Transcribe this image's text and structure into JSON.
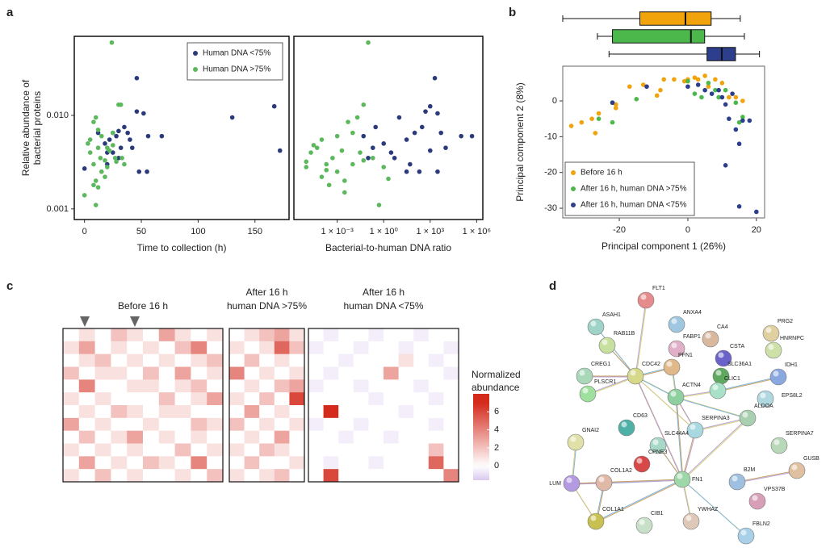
{
  "panel_labels": [
    "a",
    "b",
    "c",
    "d"
  ],
  "chart_data": [
    {
      "type": "scatter",
      "ylabel": [
        "Relative abundance of",
        "bacterial proteins"
      ],
      "xlabel": "Time to collection (h)",
      "xlim": [
        -9,
        180
      ],
      "xticks": [
        0,
        50,
        100,
        150
      ],
      "ylog": true,
      "ylim": [
        0.00077,
        0.07
      ],
      "yticks": [
        0.001,
        {
          "value": 0.01,
          "label": "0.010"
        }
      ],
      "legend": "upper right",
      "series": [
        {
          "name": "Human DNA <75%",
          "color": "#2b3a7a",
          "x": [
            0,
            12,
            18,
            20,
            22,
            25,
            25,
            28,
            30,
            32,
            35,
            38,
            40,
            42,
            46,
            46,
            48,
            52,
            55,
            56,
            68,
            130,
            167,
            172,
            30,
            20
          ],
          "values": [
            0.0027,
            0.0065,
            0.005,
            0.004,
            0.0055,
            0.0065,
            0.004,
            0.006,
            0.0068,
            0.0045,
            0.0075,
            0.0065,
            0.0055,
            0.0045,
            0.025,
            0.011,
            0.0025,
            0.0105,
            0.0025,
            0.006,
            0.006,
            0.0095,
            0.0125,
            0.0042,
            0.0035,
            0.003
          ]
        },
        {
          "name": "Human DNA >75%",
          "color": "#5cb85c",
          "x": [
            0,
            5,
            5,
            8,
            8,
            10,
            10,
            10,
            12,
            12,
            14,
            15,
            15,
            18,
            18,
            20,
            22,
            24,
            25,
            27,
            28,
            30,
            32,
            35,
            8,
            3,
            12,
            20,
            25,
            33
          ],
          "values": [
            0.0014,
            0.004,
            0.0055,
            0.003,
            0.0085,
            0.0095,
            0.0011,
            0.002,
            0.007,
            0.0045,
            0.0035,
            0.006,
            0.0025,
            0.0033,
            0.0022,
            0.0045,
            0.0042,
            0.06,
            0.0065,
            0.0035,
            0.0032,
            0.013,
            0.013,
            0.003,
            0.0018,
            0.005,
            0.0017,
            0.0028,
            0.0048,
            0.0035
          ]
        }
      ]
    },
    {
      "type": "scatter",
      "xlabel": "Bacterial-to-human DNA ratio",
      "xlog": true,
      "xlim": [
        1.6e-06,
        2500000.0
      ],
      "xticks": [
        {
          "value": 0.001,
          "label": "1 × 10⁻³"
        },
        {
          "value": 1,
          "label": "1 × 10⁰"
        },
        {
          "value": 1000,
          "label": "1 × 10³"
        },
        {
          "value": 1000000,
          "label": "1 × 10⁶"
        }
      ],
      "ylog": true,
      "ylim": [
        0.00077,
        0.07
      ],
      "series": [
        {
          "color": "#2b3a7a",
          "x": [
            0.05,
            0.2,
            0.3,
            1,
            3,
            5,
            10,
            30,
            50,
            100,
            200,
            300,
            500,
            1000,
            2000,
            3000,
            5000,
            10000,
            100000,
            500000,
            0.1,
            30,
            3000,
            1000
          ],
          "values": [
            0.006,
            0.0045,
            0.0075,
            0.005,
            0.004,
            0.0035,
            0.0095,
            0.0055,
            0.003,
            0.0065,
            0.0025,
            0.0075,
            0.011,
            0.0125,
            0.025,
            0.0105,
            0.0065,
            0.0045,
            0.006,
            0.006,
            0.0035,
            0.0025,
            0.0025,
            0.0042
          ]
        },
        {
          "color": "#5cb85c",
          "x": [
            1e-05,
            1e-05,
            2e-05,
            5e-05,
            0.0001,
            0.0001,
            0.0002,
            0.0003,
            0.0005,
            0.001,
            0.001,
            0.002,
            0.003,
            0.005,
            0.01,
            0.01,
            0.02,
            0.03,
            0.05,
            0.1,
            0.2,
            0.5,
            1,
            2,
            3e-05,
            0.003,
            0.05,
            0.0002
          ],
          "values": [
            0.0028,
            0.0032,
            0.004,
            0.0045,
            0.0022,
            0.0055,
            0.003,
            0.0018,
            0.0035,
            0.0025,
            0.006,
            0.0042,
            0.0015,
            0.0085,
            0.0065,
            0.003,
            0.0095,
            0.004,
            0.013,
            0.06,
            0.0035,
            0.0011,
            0.0028,
            0.0021,
            0.0048,
            0.002,
            0.0033,
            0.0026
          ]
        }
      ]
    },
    {
      "type": "box",
      "xlim": [
        -36.5,
        22.4
      ],
      "series": [
        {
          "color": "#f0a30a",
          "min": -36.5,
          "q1": -14,
          "median": -0.7,
          "q3": 6.8,
          "max": 15.3
        },
        {
          "color": "#4cb84c",
          "min": -26.4,
          "q1": -22,
          "median": 0.9,
          "q3": 4.9,
          "max": 16.5
        },
        {
          "color": "#2d3f8c",
          "min": -23,
          "q1": 5.6,
          "median": 9.9,
          "q3": 13.9,
          "max": 20.9
        }
      ]
    },
    {
      "type": "scatter",
      "xlabel": "Principal component 1 (26%)",
      "ylabel": [
        "Principal component 2 (8%)"
      ],
      "xlim": [
        -36.5,
        22.4
      ],
      "xticks": [
        -20,
        0,
        20
      ],
      "ylim": [
        -32.7,
        9.7
      ],
      "yticks": [
        -30,
        -20,
        -10,
        0
      ],
      "legend": "lower left",
      "series": [
        {
          "name": "Before 16 h",
          "color": "#f0a30a",
          "x": [
            -34,
            -31,
            -28,
            -27,
            -26,
            -21,
            -17,
            -13,
            -9,
            -8,
            -7,
            -4,
            -1,
            0,
            2,
            3,
            5,
            6,
            8,
            10,
            12,
            14,
            16,
            -21
          ],
          "values": [
            -7,
            -6,
            -5,
            -9,
            -3.5,
            -1,
            4,
            4.5,
            1.5,
            3,
            6,
            6,
            5.5,
            6,
            6.5,
            6,
            7,
            4,
            6,
            5,
            1,
            1,
            0,
            -2
          ]
        },
        {
          "name": "After 16 h, human DNA >75%",
          "color": "#4cb84c",
          "x": [
            -26,
            -22,
            -15,
            0,
            2,
            4,
            6,
            8,
            9,
            11,
            14,
            15,
            16,
            -22
          ],
          "values": [
            -5,
            -6,
            0.5,
            5.5,
            2,
            1,
            5,
            3,
            1,
            3,
            -0.5,
            -6,
            -4.5,
            -0.5
          ]
        },
        {
          "name": "After 16 h, human DNA <75%",
          "color": "#2d3f8c",
          "x": [
            -22,
            -12,
            0,
            3,
            5,
            7,
            9,
            10,
            11,
            11,
            12,
            14,
            15,
            16,
            18,
            15,
            20,
            13
          ],
          "values": [
            -0.5,
            4,
            4,
            4.5,
            3,
            2,
            3,
            1,
            -1,
            -18,
            -5,
            -8,
            -12,
            -5.5,
            -5.5,
            -29.5,
            -31,
            2
          ]
        }
      ]
    },
    {
      "type": "heatmap",
      "colorbar_label": [
        "Normalized",
        "abundance"
      ],
      "zlim": [
        -1.6,
        8
      ],
      "zticks": [
        0,
        2,
        4,
        6
      ],
      "blocks": [
        {
          "title": [
            "Before 16 h"
          ],
          "values": [
            [
              0,
              1,
              0,
              2,
              1,
              0,
              3,
              1,
              0,
              1
            ],
            [
              1,
              3,
              0,
              1,
              0,
              1,
              0,
              2,
              4,
              0
            ],
            [
              0,
              1,
              2,
              0,
              1,
              0,
              1,
              0,
              1,
              2
            ],
            [
              2,
              0,
              1,
              1,
              0,
              2,
              0,
              3,
              0,
              1
            ],
            [
              0,
              4,
              0,
              0,
              1,
              1,
              0,
              1,
              2,
              0
            ],
            [
              1,
              0,
              1,
              0,
              0,
              0,
              2,
              0,
              1,
              3
            ],
            [
              0,
              1,
              0,
              2,
              1,
              0,
              1,
              1,
              0,
              0
            ],
            [
              3,
              0,
              1,
              0,
              0,
              1,
              0,
              0,
              2,
              1
            ],
            [
              0,
              2,
              0,
              1,
              3,
              0,
              1,
              0,
              1,
              0
            ],
            [
              1,
              0,
              1,
              0,
              1,
              0,
              0,
              2,
              0,
              1
            ],
            [
              0,
              3,
              0,
              1,
              0,
              2,
              1,
              0,
              4,
              0
            ],
            [
              1,
              0,
              2,
              0,
              1,
              0,
              0,
              1,
              0,
              2
            ]
          ]
        },
        {
          "title": [
            "After 16 h",
            "human DNA >75%"
          ],
          "values": [
            [
              0,
              1,
              2,
              3,
              1
            ],
            [
              1,
              0,
              1,
              5,
              2
            ],
            [
              0,
              2,
              0,
              1,
              0
            ],
            [
              4,
              0,
              1,
              0,
              1
            ],
            [
              0,
              1,
              0,
              2,
              3
            ],
            [
              1,
              0,
              2,
              0,
              6
            ],
            [
              0,
              3,
              0,
              1,
              0
            ],
            [
              2,
              0,
              1,
              0,
              1
            ],
            [
              0,
              1,
              0,
              3,
              0
            ],
            [
              1,
              0,
              2,
              1,
              0
            ],
            [
              0,
              2,
              0,
              0,
              1
            ],
            [
              1,
              0,
              1,
              2,
              0
            ]
          ]
        },
        {
          "title": [
            "After 16 h",
            "human DNA <75%"
          ],
          "values": [
            [
              0,
              -0.5,
              0,
              0,
              -0.5,
              0,
              0,
              -0.5,
              0,
              0
            ],
            [
              -0.5,
              0,
              0,
              -0.5,
              0,
              0,
              -0.5,
              0,
              0,
              -0.5
            ],
            [
              0,
              0,
              -0.5,
              0,
              0,
              0,
              1,
              0,
              -0.5,
              0
            ],
            [
              0,
              -0.5,
              0,
              0,
              0,
              3,
              0,
              0,
              0,
              -0.5
            ],
            [
              -0.5,
              0,
              0,
              -0.5,
              0,
              0,
              0,
              -0.5,
              0,
              0
            ],
            [
              0,
              0,
              0,
              0,
              -0.5,
              0,
              0,
              0,
              -0.5,
              0
            ],
            [
              0,
              7,
              0,
              0,
              0,
              0,
              -0.5,
              0,
              0,
              0
            ],
            [
              -0.5,
              0,
              0,
              -0.5,
              0,
              0,
              0,
              0,
              -0.5,
              0
            ],
            [
              0,
              0,
              -0.5,
              0,
              0,
              -0.5,
              0,
              0,
              0,
              0
            ],
            [
              0,
              0,
              0,
              0,
              0,
              0,
              0,
              0,
              2,
              0
            ],
            [
              0,
              -0.5,
              0,
              0,
              -0.5,
              0,
              0,
              0,
              5,
              0
            ],
            [
              0,
              6,
              0,
              0,
              0,
              0,
              0,
              0,
              0,
              4
            ]
          ]
        }
      ]
    }
  ],
  "network": {
    "nodes": [
      "FLT1",
      "ASAH1",
      "ANXA4",
      "RAB11B",
      "PRG2",
      "CA4",
      "FABP1",
      "HNRNPC",
      "CSTA",
      "PFN1",
      "CDC42",
      "CREG1",
      "SLC36A1",
      "IDH1",
      "CLIC1",
      "PLSCR1",
      "ACTN4",
      "EPS8L2",
      "ALDOA",
      "GNAI2",
      "CD63",
      "SERPINA3",
      "SERPINA7",
      "SLC44A4",
      "CPNE3",
      "FN1",
      "LUM",
      "COL1A2",
      "B2M",
      "GUSB",
      "VPS37B",
      "COL1A1",
      "CIB1",
      "YWHAZ",
      "FBLN2"
    ]
  }
}
